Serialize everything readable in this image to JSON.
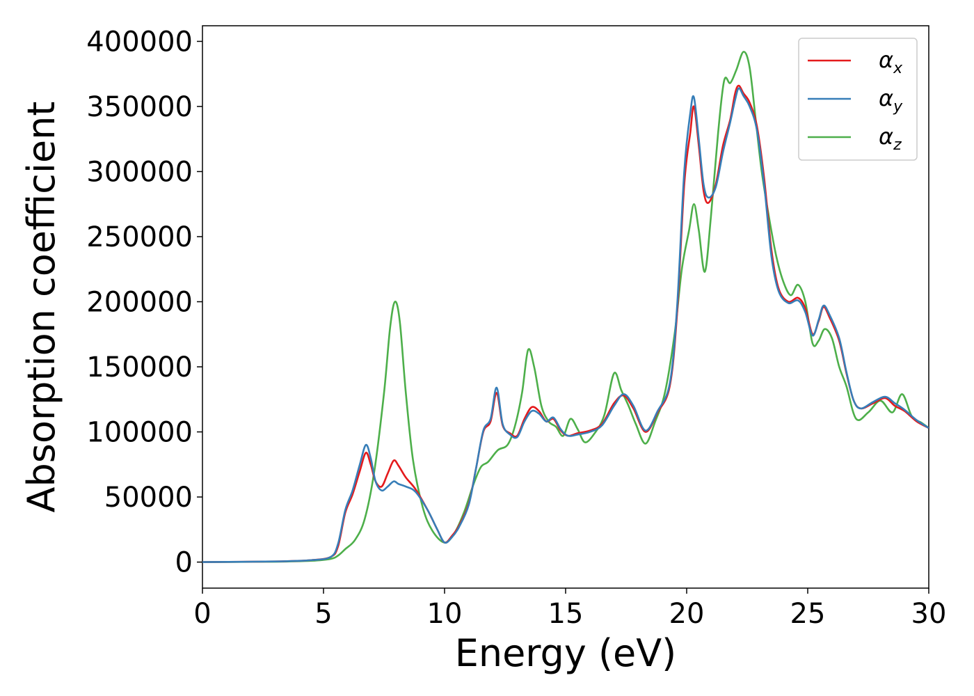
{
  "chart_data": {
    "type": "line",
    "xlabel": "Energy (eV)",
    "ylabel": "Absorption coefficient",
    "xlim": [
      0,
      30
    ],
    "ylim": [
      -20000,
      412000
    ],
    "xticks": [
      0,
      5,
      10,
      15,
      20,
      25,
      30
    ],
    "xtick_labels": [
      "0",
      "5",
      "10",
      "15",
      "20",
      "25",
      "30"
    ],
    "yticks": [
      0,
      50000,
      100000,
      150000,
      200000,
      250000,
      300000,
      350000,
      400000
    ],
    "ytick_labels": [
      "0",
      "50000",
      "100000",
      "150000",
      "200000",
      "250000",
      "300000",
      "350000",
      "400000"
    ],
    "grid": false,
    "legend_position": "top-right",
    "series": [
      {
        "name": "α_x",
        "label_main": "α",
        "label_sub": "x",
        "color": "#e41a1c",
        "points": [
          [
            0,
            0
          ],
          [
            3,
            500
          ],
          [
            4.5,
            1500
          ],
          [
            5.3,
            4000
          ],
          [
            5.6,
            12000
          ],
          [
            5.9,
            38000
          ],
          [
            6.2,
            52000
          ],
          [
            6.5,
            70000
          ],
          [
            6.75,
            84000
          ],
          [
            6.95,
            75000
          ],
          [
            7.15,
            62000
          ],
          [
            7.4,
            58000
          ],
          [
            7.65,
            68000
          ],
          [
            7.9,
            78000
          ],
          [
            8.1,
            74000
          ],
          [
            8.4,
            65000
          ],
          [
            8.8,
            56000
          ],
          [
            9.3,
            40000
          ],
          [
            9.7,
            25000
          ],
          [
            10.0,
            15000
          ],
          [
            10.3,
            20000
          ],
          [
            10.6,
            28000
          ],
          [
            11.0,
            45000
          ],
          [
            11.3,
            72000
          ],
          [
            11.6,
            100000
          ],
          [
            11.9,
            108000
          ],
          [
            12.15,
            130000
          ],
          [
            12.4,
            105000
          ],
          [
            12.7,
            99000
          ],
          [
            13.0,
            97000
          ],
          [
            13.3,
            110000
          ],
          [
            13.6,
            119000
          ],
          [
            13.9,
            116000
          ],
          [
            14.2,
            108000
          ],
          [
            14.5,
            110000
          ],
          [
            14.8,
            101000
          ],
          [
            15.1,
            97000
          ],
          [
            15.5,
            99000
          ],
          [
            16.0,
            101000
          ],
          [
            16.5,
            106000
          ],
          [
            17.0,
            122000
          ],
          [
            17.4,
            128000
          ],
          [
            17.8,
            118000
          ],
          [
            18.3,
            100000
          ],
          [
            18.8,
            115000
          ],
          [
            19.3,
            135000
          ],
          [
            19.6,
            190000
          ],
          [
            19.9,
            290000
          ],
          [
            20.15,
            330000
          ],
          [
            20.3,
            350000
          ],
          [
            20.5,
            320000
          ],
          [
            20.7,
            285000
          ],
          [
            20.9,
            276000
          ],
          [
            21.2,
            290000
          ],
          [
            21.5,
            320000
          ],
          [
            21.8,
            340000
          ],
          [
            22.0,
            360000
          ],
          [
            22.15,
            366000
          ],
          [
            22.35,
            360000
          ],
          [
            22.6,
            353000
          ],
          [
            22.9,
            335000
          ],
          [
            23.2,
            295000
          ],
          [
            23.5,
            240000
          ],
          [
            23.8,
            210000
          ],
          [
            24.2,
            200000
          ],
          [
            24.6,
            203000
          ],
          [
            24.9,
            195000
          ],
          [
            25.2,
            175000
          ],
          [
            25.45,
            185000
          ],
          [
            25.65,
            196000
          ],
          [
            25.9,
            188000
          ],
          [
            26.3,
            170000
          ],
          [
            26.6,
            145000
          ],
          [
            26.9,
            124000
          ],
          [
            27.2,
            118000
          ],
          [
            27.7,
            122000
          ],
          [
            28.2,
            126000
          ],
          [
            28.6,
            120000
          ],
          [
            29.0,
            116000
          ],
          [
            29.5,
            108000
          ],
          [
            30.0,
            103000
          ]
        ]
      },
      {
        "name": "α_y",
        "label_main": "α",
        "label_sub": "y",
        "color": "#377eb8",
        "points": [
          [
            0,
            0
          ],
          [
            3,
            500
          ],
          [
            4.5,
            1500
          ],
          [
            5.3,
            4000
          ],
          [
            5.6,
            14000
          ],
          [
            5.9,
            40000
          ],
          [
            6.2,
            55000
          ],
          [
            6.5,
            75000
          ],
          [
            6.75,
            90000
          ],
          [
            6.95,
            80000
          ],
          [
            7.15,
            62000
          ],
          [
            7.4,
            55000
          ],
          [
            7.65,
            58000
          ],
          [
            7.9,
            62000
          ],
          [
            8.1,
            60000
          ],
          [
            8.4,
            58000
          ],
          [
            8.8,
            54000
          ],
          [
            9.3,
            40000
          ],
          [
            9.7,
            25000
          ],
          [
            10.0,
            15000
          ],
          [
            10.3,
            19000
          ],
          [
            10.6,
            27000
          ],
          [
            11.0,
            44000
          ],
          [
            11.3,
            72000
          ],
          [
            11.6,
            101000
          ],
          [
            11.9,
            110000
          ],
          [
            12.15,
            134000
          ],
          [
            12.4,
            106000
          ],
          [
            12.7,
            98000
          ],
          [
            13.0,
            96000
          ],
          [
            13.3,
            108000
          ],
          [
            13.6,
            116000
          ],
          [
            13.9,
            114000
          ],
          [
            14.2,
            108000
          ],
          [
            14.5,
            111000
          ],
          [
            14.8,
            102000
          ],
          [
            15.1,
            97000
          ],
          [
            15.5,
            98000
          ],
          [
            16.0,
            100000
          ],
          [
            16.5,
            105000
          ],
          [
            17.0,
            120000
          ],
          [
            17.4,
            129000
          ],
          [
            17.8,
            120000
          ],
          [
            18.3,
            101000
          ],
          [
            18.8,
            116000
          ],
          [
            19.3,
            137000
          ],
          [
            19.6,
            195000
          ],
          [
            19.9,
            300000
          ],
          [
            20.15,
            345000
          ],
          [
            20.3,
            357000
          ],
          [
            20.5,
            325000
          ],
          [
            20.7,
            290000
          ],
          [
            20.9,
            280000
          ],
          [
            21.2,
            288000
          ],
          [
            21.5,
            315000
          ],
          [
            21.8,
            338000
          ],
          [
            22.0,
            355000
          ],
          [
            22.15,
            364000
          ],
          [
            22.35,
            358000
          ],
          [
            22.6,
            350000
          ],
          [
            22.9,
            332000
          ],
          [
            23.2,
            290000
          ],
          [
            23.5,
            235000
          ],
          [
            23.8,
            208000
          ],
          [
            24.2,
            199000
          ],
          [
            24.6,
            201000
          ],
          [
            24.9,
            192000
          ],
          [
            25.2,
            174000
          ],
          [
            25.45,
            186000
          ],
          [
            25.65,
            197000
          ],
          [
            25.9,
            190000
          ],
          [
            26.3,
            172000
          ],
          [
            26.6,
            146000
          ],
          [
            26.9,
            124000
          ],
          [
            27.2,
            118000
          ],
          [
            27.7,
            123000
          ],
          [
            28.2,
            127000
          ],
          [
            28.6,
            122000
          ],
          [
            29.0,
            117000
          ],
          [
            29.5,
            109000
          ],
          [
            30.0,
            103000
          ]
        ]
      },
      {
        "name": "α_z",
        "label_main": "α",
        "label_sub": "z",
        "color": "#4daf4a",
        "points": [
          [
            0,
            0
          ],
          [
            3,
            300
          ],
          [
            4.5,
            1000
          ],
          [
            5.3,
            2500
          ],
          [
            5.6,
            5000
          ],
          [
            5.9,
            10000
          ],
          [
            6.3,
            17000
          ],
          [
            6.7,
            33000
          ],
          [
            7.1,
            70000
          ],
          [
            7.5,
            130000
          ],
          [
            7.75,
            180000
          ],
          [
            7.95,
            200000
          ],
          [
            8.15,
            185000
          ],
          [
            8.4,
            130000
          ],
          [
            8.7,
            78000
          ],
          [
            9.1,
            42000
          ],
          [
            9.5,
            24000
          ],
          [
            10.0,
            15000
          ],
          [
            10.4,
            22000
          ],
          [
            10.8,
            38000
          ],
          [
            11.2,
            60000
          ],
          [
            11.5,
            73000
          ],
          [
            11.8,
            77000
          ],
          [
            12.2,
            86000
          ],
          [
            12.6,
            90000
          ],
          [
            12.9,
            104000
          ],
          [
            13.2,
            130000
          ],
          [
            13.45,
            163000
          ],
          [
            13.7,
            150000
          ],
          [
            14.0,
            120000
          ],
          [
            14.3,
            108000
          ],
          [
            14.6,
            104000
          ],
          [
            14.9,
            97000
          ],
          [
            15.2,
            110000
          ],
          [
            15.5,
            102000
          ],
          [
            15.8,
            92000
          ],
          [
            16.2,
            99000
          ],
          [
            16.6,
            113000
          ],
          [
            17.0,
            145000
          ],
          [
            17.3,
            132000
          ],
          [
            17.6,
            120000
          ],
          [
            17.9,
            106000
          ],
          [
            18.3,
            91000
          ],
          [
            18.7,
            108000
          ],
          [
            19.1,
            130000
          ],
          [
            19.5,
            175000
          ],
          [
            19.8,
            225000
          ],
          [
            20.1,
            255000
          ],
          [
            20.3,
            275000
          ],
          [
            20.5,
            255000
          ],
          [
            20.75,
            223000
          ],
          [
            21.0,
            265000
          ],
          [
            21.3,
            330000
          ],
          [
            21.55,
            370000
          ],
          [
            21.8,
            368000
          ],
          [
            22.05,
            378000
          ],
          [
            22.35,
            392000
          ],
          [
            22.6,
            380000
          ],
          [
            22.85,
            340000
          ],
          [
            23.1,
            300000
          ],
          [
            23.4,
            265000
          ],
          [
            23.7,
            235000
          ],
          [
            24.0,
            215000
          ],
          [
            24.3,
            205000
          ],
          [
            24.6,
            213000
          ],
          [
            24.9,
            200000
          ],
          [
            25.2,
            168000
          ],
          [
            25.45,
            170000
          ],
          [
            25.7,
            179000
          ],
          [
            26.0,
            172000
          ],
          [
            26.3,
            150000
          ],
          [
            26.6,
            135000
          ],
          [
            27.0,
            110000
          ],
          [
            27.5,
            115000
          ],
          [
            28.0,
            124000
          ],
          [
            28.5,
            115000
          ],
          [
            28.9,
            129000
          ],
          [
            29.3,
            112000
          ],
          [
            29.7,
            107000
          ],
          [
            30.0,
            103000
          ]
        ]
      }
    ]
  }
}
